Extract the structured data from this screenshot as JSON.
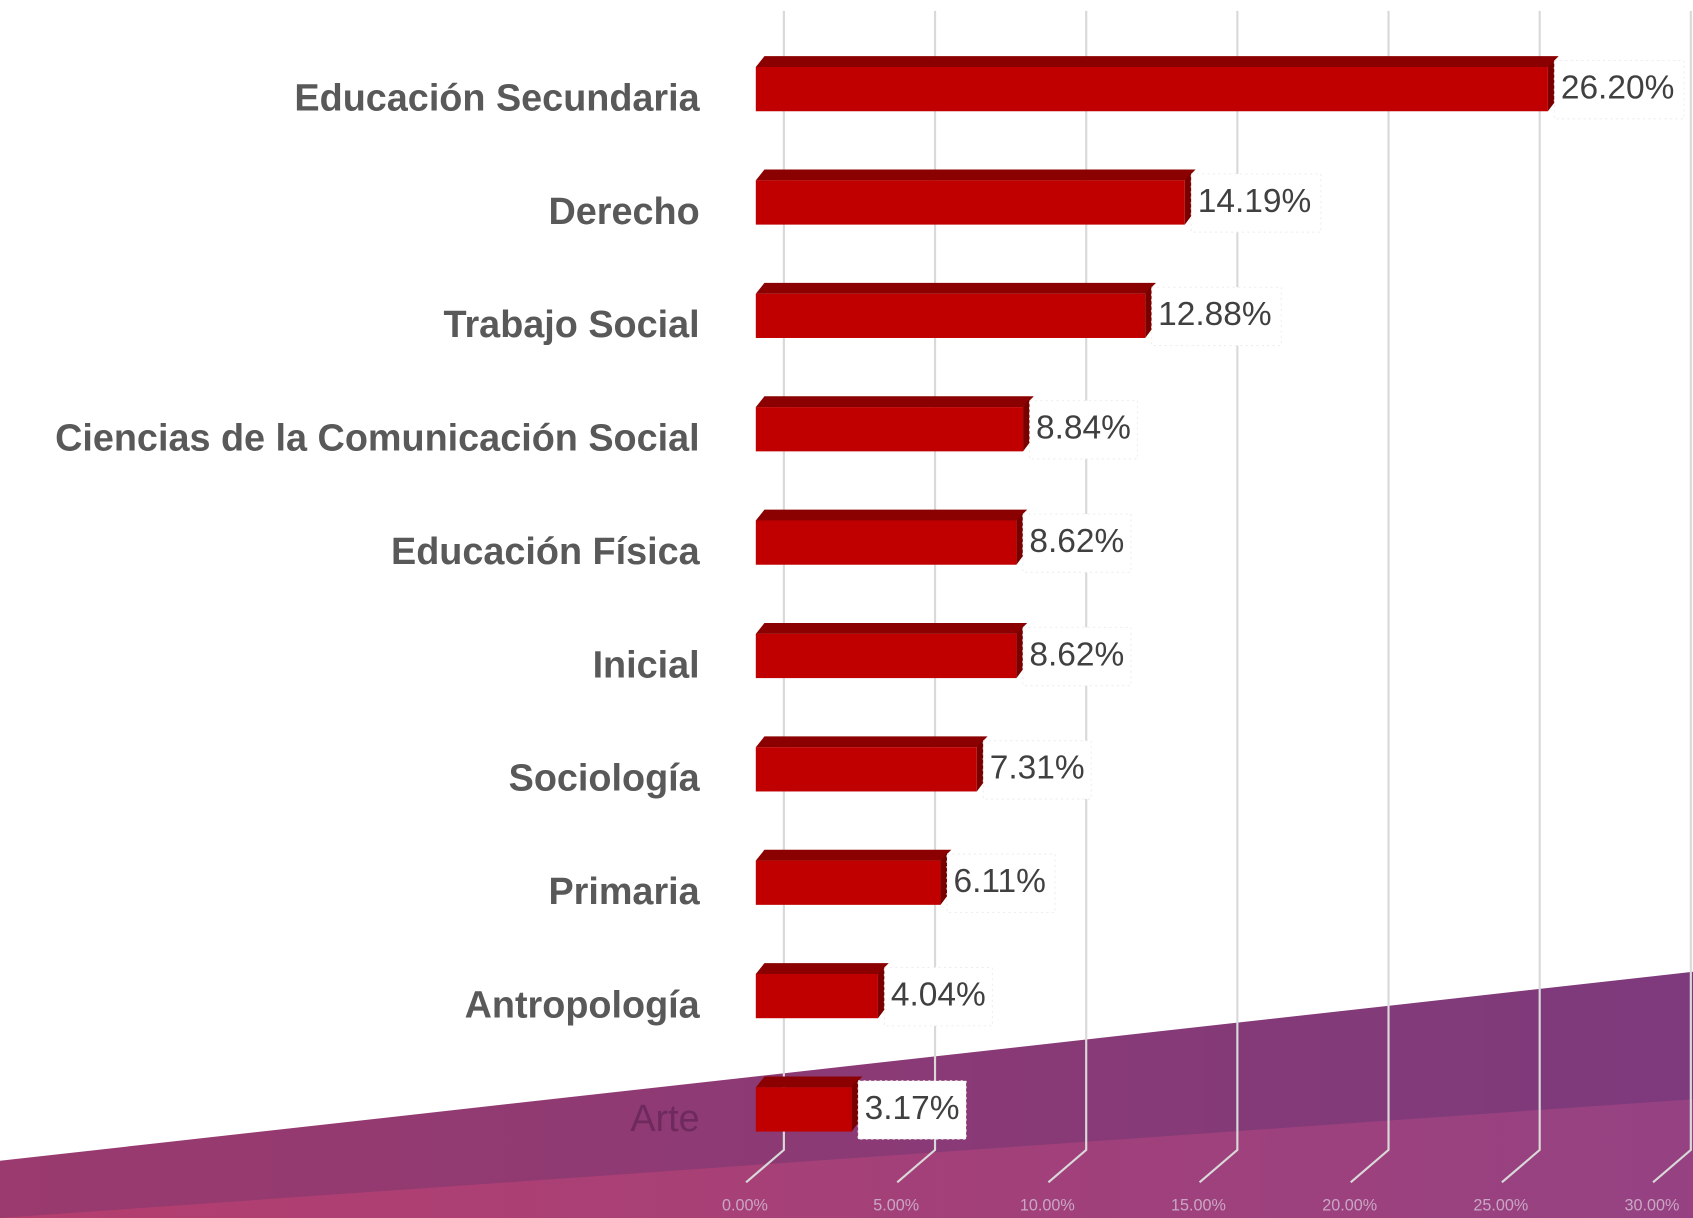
{
  "chart_data": {
    "type": "bar",
    "orientation": "horizontal",
    "categories": [
      "Educación Secundaria",
      "Derecho",
      "Trabajo Social",
      "Ciencias de la Comunicación Social",
      "Educación Física",
      "Inicial",
      "Sociología",
      "Primaria",
      "Antropología",
      "Arte"
    ],
    "values": [
      26.2,
      14.19,
      12.88,
      8.84,
      8.62,
      8.62,
      7.31,
      6.11,
      4.04,
      3.17
    ],
    "value_labels": [
      "26.20%",
      "14.19%",
      "12.88%",
      "8.84%",
      "8.62%",
      "8.62%",
      "7.31%",
      "6.11%",
      "4.04%",
      "3.17%"
    ],
    "color": "#c00000",
    "xlim": [
      0,
      30
    ],
    "xticks": [
      {
        "value": 0,
        "label": "0.00%"
      },
      {
        "value": 5,
        "label": "5.00%"
      },
      {
        "value": 10,
        "label": "10.00%"
      },
      {
        "value": 15,
        "label": "15.00%"
      },
      {
        "value": 20,
        "label": "20.00%"
      },
      {
        "value": 25,
        "label": "25.00%"
      },
      {
        "value": 30,
        "label": "30.00%"
      }
    ],
    "grid": true
  }
}
